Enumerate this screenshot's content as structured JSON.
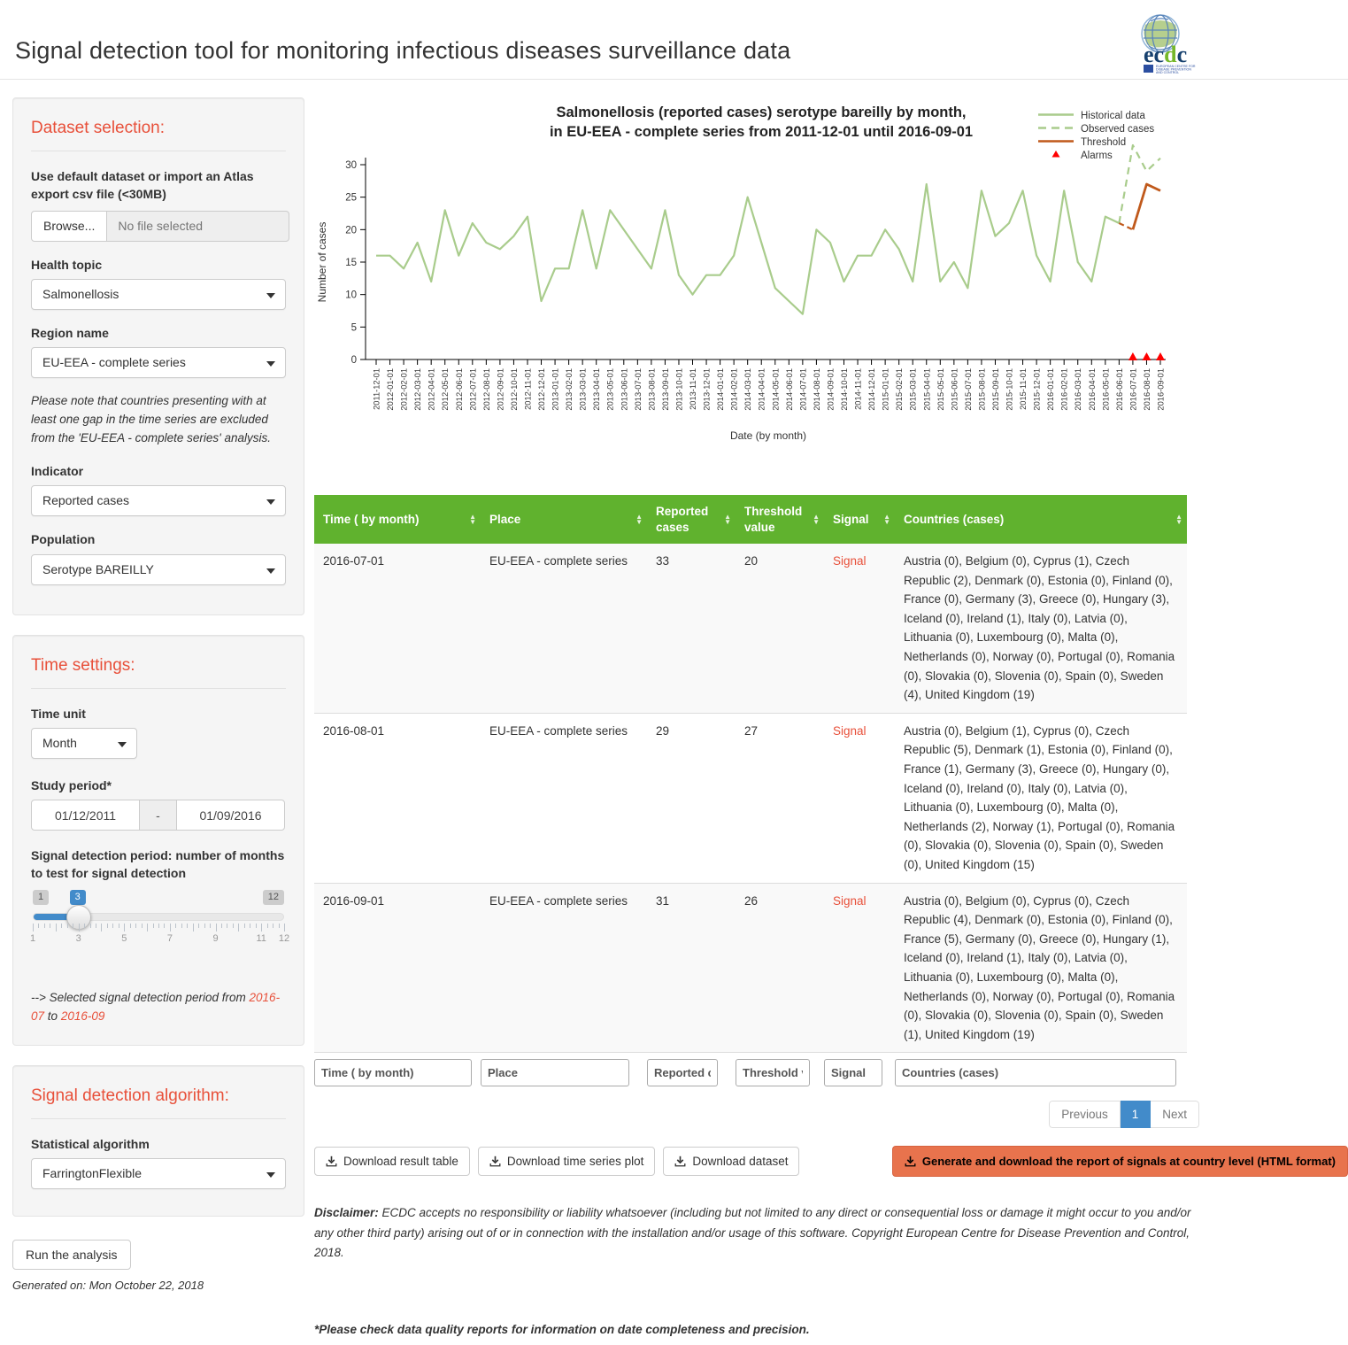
{
  "header": {
    "title": "Signal detection tool for monitoring infectious diseases surveillance data",
    "logo_text": "ecdc",
    "logo_subtext_1": "EUROPEAN CENTRE FOR",
    "logo_subtext_2": "DISEASE PREVENTION",
    "logo_subtext_3": "AND CONTROL"
  },
  "sidebar": {
    "dataset": {
      "heading": "Dataset selection:",
      "upload_label": "Use default dataset or import an Atlas export csv file (<30MB)",
      "browse_label": "Browse...",
      "file_placeholder": "No file selected",
      "health_topic_label": "Health topic",
      "health_topic_value": "Salmonellosis",
      "region_label": "Region name",
      "region_value": "EU-EEA - complete series",
      "note": "Please note that countries presenting with at least one gap in the time series are excluded from the 'EU-EEA - complete series' analysis.",
      "indicator_label": "Indicator",
      "indicator_value": "Reported cases",
      "population_label": "Population",
      "population_value": "Serotype BAREILLY"
    },
    "time": {
      "heading": "Time settings:",
      "time_unit_label": "Time unit",
      "time_unit_value": "Month",
      "study_period_label": "Study period*",
      "study_from": "01/12/2011",
      "study_separator": "-",
      "study_to": "01/09/2016",
      "slider_label": "Signal detection period: number of months to test for signal detection",
      "slider": {
        "min": 1,
        "max": 12,
        "value": 3,
        "tick_labels": [
          1,
          3,
          5,
          7,
          9,
          11,
          12
        ]
      },
      "selected_prefix": "--> Selected signal detection period from",
      "selected_from": "2016-07",
      "selected_joiner": "to",
      "selected_to": "2016-09"
    },
    "algorithm": {
      "heading": "Signal detection algorithm:",
      "label": "Statistical algorithm",
      "value": "FarringtonFlexible"
    },
    "run_button": "Run the analysis",
    "generated": "Generated on: Mon October 22, 2018"
  },
  "chart_data": {
    "type": "line",
    "title_line1": "Salmonellosis (reported cases) serotype bareilly by month,",
    "title_line2": "in EU-EEA - complete series from 2011-12-01 until 2016-09-01",
    "xlabel": "Date (by month)",
    "ylabel": "Number of cases",
    "ylim": [
      0,
      33
    ],
    "yticks": [
      0,
      5,
      10,
      15,
      20,
      25,
      30
    ],
    "x": [
      "2011-12-01",
      "2012-01-01",
      "2012-02-01",
      "2012-03-01",
      "2012-04-01",
      "2012-05-01",
      "2012-06-01",
      "2012-07-01",
      "2012-08-01",
      "2012-09-01",
      "2012-10-01",
      "2012-11-01",
      "2012-12-01",
      "2013-01-01",
      "2013-02-01",
      "2013-03-01",
      "2013-04-01",
      "2013-05-01",
      "2013-06-01",
      "2013-07-01",
      "2013-08-01",
      "2013-09-01",
      "2013-10-01",
      "2013-11-01",
      "2013-12-01",
      "2014-01-01",
      "2014-02-01",
      "2014-03-01",
      "2014-04-01",
      "2014-05-01",
      "2014-06-01",
      "2014-07-01",
      "2014-08-01",
      "2014-09-01",
      "2014-10-01",
      "2014-11-01",
      "2014-12-01",
      "2015-01-01",
      "2015-02-01",
      "2015-03-01",
      "2015-04-01",
      "2015-05-01",
      "2015-06-01",
      "2015-07-01",
      "2015-08-01",
      "2015-09-01",
      "2015-10-01",
      "2015-11-01",
      "2015-12-01",
      "2016-01-01",
      "2016-02-01",
      "2016-03-01",
      "2016-04-01",
      "2016-05-01",
      "2016-06-01",
      "2016-07-01",
      "2016-08-01",
      "2016-09-01"
    ],
    "series": [
      {
        "name": "Historical data",
        "style": "solid",
        "color": "#a9cc8c",
        "start": 0,
        "values": [
          16,
          16,
          14,
          18,
          12,
          23,
          16,
          21,
          18,
          17,
          19,
          22,
          9,
          14,
          14,
          23,
          14,
          23,
          20,
          17,
          14,
          23,
          13,
          10,
          13,
          13,
          16,
          25,
          18,
          11,
          9,
          7,
          20,
          18,
          12,
          16,
          16,
          20,
          17,
          12,
          27,
          12,
          15,
          11,
          26,
          19,
          21,
          26,
          16,
          12,
          26,
          15,
          12,
          22,
          21
        ]
      },
      {
        "name": "Observed cases",
        "style": "dashed",
        "color": "#a9cc8c",
        "start": 54,
        "values": [
          21,
          33,
          29,
          31
        ]
      },
      {
        "name": "Threshold lead",
        "style": "dashed",
        "color": "#c0591b",
        "start": 54,
        "values": [
          21,
          20
        ]
      },
      {
        "name": "Threshold",
        "style": "solid",
        "color": "#c0591b",
        "start": 55,
        "values": [
          20,
          27,
          26
        ]
      }
    ],
    "alarms": {
      "name": "Alarms",
      "color": "#ff0000",
      "indices": [
        55,
        56,
        57
      ]
    },
    "legend": [
      {
        "label": "Historical data",
        "swatch": "line-solid",
        "color": "#a9cc8c"
      },
      {
        "label": "Observed cases",
        "swatch": "line-dashed",
        "color": "#a9cc8c"
      },
      {
        "label": "Threshold",
        "swatch": "line-solid",
        "color": "#c0591b"
      },
      {
        "label": "Alarms",
        "swatch": "triangle",
        "color": "#ff0000"
      }
    ],
    "legend_position": "top-right",
    "grid": false
  },
  "table": {
    "columns": [
      "Time ( by month)",
      "Place",
      "Reported cases",
      "Threshold value",
      "Signal",
      "Countries (cases)"
    ],
    "rows": [
      {
        "time": "2016-07-01",
        "place": "EU-EEA - complete series",
        "reported": "33",
        "threshold": "20",
        "signal": "Signal",
        "countries": "Austria (0), Belgium (0), Cyprus (1), Czech Republic (2), Denmark (0), Estonia (0), Finland (0), France (0), Germany (3), Greece (0), Hungary (3), Iceland (0), Ireland (1), Italy (0), Latvia (0), Lithuania (0), Luxembourg (0), Malta (0), Netherlands (0), Norway (0), Portugal (0), Romania (0), Slovakia (0), Slovenia (0), Spain (0), Sweden (4), United Kingdom (19)"
      },
      {
        "time": "2016-08-01",
        "place": "EU-EEA - complete series",
        "reported": "29",
        "threshold": "27",
        "signal": "Signal",
        "countries": "Austria (0), Belgium (1), Cyprus (0), Czech Republic (5), Denmark (1), Estonia (0), Finland (0), France (1), Germany (3), Greece (0), Hungary (0), Iceland (0), Ireland (0), Italy (0), Latvia (0), Lithuania (0), Luxembourg (0), Malta (0), Netherlands (2), Norway (1), Portugal (0), Romania (0), Slovakia (0), Slovenia (0), Spain (0), Sweden (0), United Kingdom (15)"
      },
      {
        "time": "2016-09-01",
        "place": "EU-EEA - complete series",
        "reported": "31",
        "threshold": "26",
        "signal": "Signal",
        "countries": "Austria (0), Belgium (0), Cyprus (0), Czech Republic (4), Denmark (0), Estonia (0), Finland (0), France (5), Germany (0), Greece (0), Hungary (1), Iceland (0), Ireland (1), Italy (0), Latvia (0), Lithuania (0), Luxembourg (0), Malta (0), Netherlands (0), Norway (0), Portugal (0), Romania (0), Slovakia (0), Slovenia (0), Spain (0), Sweden (1), United Kingdom (19)"
      }
    ],
    "filters": [
      "Time ( by month)",
      "Place",
      "Reported cases",
      "Threshold value",
      "Signal",
      "Countries (cases)"
    ],
    "pagination": {
      "previous": "Previous",
      "page": "1",
      "next": "Next"
    }
  },
  "actions": {
    "download_table": "Download result table",
    "download_plot": "Download time series plot",
    "download_dataset": "Download dataset",
    "generate_report": "Generate and download the report of signals at country level (HTML format)"
  },
  "footer": {
    "disclaimer_label": "Disclaimer:",
    "disclaimer_text": " ECDC accepts no responsibility or liability whatsoever (including but not limited to any direct or consequential loss or damage it might occur to you and/or any other third party) arising out of or in connection with the installation and/or usage of this software. Copyright European Centre for Disease Prevention and Control, 2018.",
    "footnote": "*Please check data quality reports for information on date completeness and precision."
  },
  "colors": {
    "accent": "#e8503a",
    "table_header_green": "#60b22e",
    "slider_blue": "#428bca",
    "report_button_orange": "#e8734d",
    "historical_green": "#a9cc8c",
    "threshold_orange": "#c0591b",
    "alarm_red": "#ff0000"
  }
}
